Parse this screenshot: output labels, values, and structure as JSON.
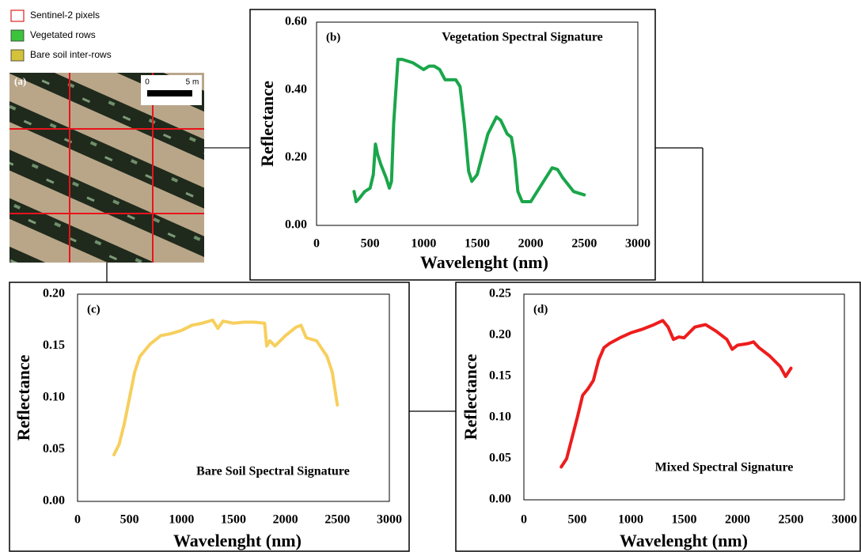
{
  "legend": {
    "items": [
      "Sentinel-2 pixels",
      "Vegetated rows",
      "Bare soil inter-rows"
    ]
  },
  "image_panel": {
    "label": "(a)",
    "scale_bar": {
      "start": "0",
      "end": "5 m"
    }
  },
  "chart_data": [
    {
      "type": "line",
      "panel": "(b)",
      "title": "Vegetation Spectral Signature",
      "x_label": "Wavelenght (nm)",
      "y_label": "Reflectance",
      "color": "#1aa64a",
      "x": [
        350,
        370,
        400,
        450,
        500,
        530,
        550,
        570,
        600,
        650,
        680,
        700,
        720,
        760,
        800,
        900,
        950,
        1000,
        1050,
        1100,
        1150,
        1200,
        1300,
        1340,
        1380,
        1420,
        1450,
        1500,
        1600,
        1680,
        1720,
        1780,
        1820,
        1850,
        1880,
        1920,
        2000,
        2100,
        2200,
        2250,
        2300,
        2400,
        2500
      ],
      "values": [
        0.1,
        0.07,
        0.08,
        0.1,
        0.11,
        0.15,
        0.24,
        0.21,
        0.18,
        0.14,
        0.11,
        0.13,
        0.3,
        0.49,
        0.49,
        0.48,
        0.47,
        0.46,
        0.47,
        0.47,
        0.46,
        0.43,
        0.43,
        0.41,
        0.3,
        0.16,
        0.13,
        0.15,
        0.27,
        0.32,
        0.31,
        0.27,
        0.26,
        0.2,
        0.1,
        0.07,
        0.07,
        0.12,
        0.17,
        0.165,
        0.14,
        0.1,
        0.09
      ],
      "xlim": [
        0,
        3000
      ],
      "xticks": [
        0,
        500,
        1000,
        1500,
        2000,
        2500,
        3000
      ],
      "ylim": [
        0,
        0.6
      ],
      "yticks": [
        {
          "value": 0,
          "label": "0.00"
        },
        {
          "value": 0.2,
          "label": "0.20"
        },
        {
          "value": 0.4,
          "label": "0.40"
        },
        {
          "value": 0.6,
          "label": "0.60"
        }
      ]
    },
    {
      "type": "line",
      "panel": "(c)",
      "title": "Bare Soil Spectral Signature",
      "x_label": "Wavelenght (nm)",
      "y_label": "Reflectance",
      "color": "#f7cf5e",
      "x": [
        350,
        400,
        450,
        500,
        550,
        600,
        700,
        800,
        900,
        1000,
        1100,
        1200,
        1300,
        1350,
        1400,
        1500,
        1600,
        1700,
        1800,
        1820,
        1850,
        1900,
        2000,
        2100,
        2150,
        2200,
        2300,
        2400,
        2450,
        2500
      ],
      "values": [
        0.045,
        0.055,
        0.075,
        0.1,
        0.125,
        0.14,
        0.152,
        0.16,
        0.162,
        0.165,
        0.17,
        0.172,
        0.175,
        0.167,
        0.174,
        0.172,
        0.173,
        0.173,
        0.172,
        0.15,
        0.155,
        0.15,
        0.16,
        0.168,
        0.17,
        0.158,
        0.155,
        0.14,
        0.125,
        0.093
      ],
      "xlim": [
        0,
        3000
      ],
      "xticks": [
        0,
        500,
        1000,
        1500,
        2000,
        2500,
        3000
      ],
      "ylim": [
        0,
        0.2
      ],
      "yticks": [
        {
          "value": 0,
          "label": "0.00"
        },
        {
          "value": 0.05,
          "label": "0.05"
        },
        {
          "value": 0.1,
          "label": "0.10"
        },
        {
          "value": 0.15,
          "label": "0.15"
        },
        {
          "value": 0.2,
          "label": "0.20"
        }
      ]
    },
    {
      "type": "line",
      "panel": "(d)",
      "title": "Mixed Spectral Signature",
      "x_label": "Wavelenght (nm)",
      "y_label": "Reflectance",
      "color": "#ee1c1c",
      "x": [
        350,
        400,
        450,
        500,
        550,
        600,
        650,
        700,
        750,
        800,
        900,
        1000,
        1100,
        1200,
        1300,
        1350,
        1400,
        1450,
        1500,
        1600,
        1700,
        1800,
        1900,
        1950,
        2000,
        2100,
        2150,
        2200,
        2300,
        2400,
        2450,
        2500
      ],
      "values": [
        0.04,
        0.05,
        0.075,
        0.1,
        0.127,
        0.135,
        0.145,
        0.17,
        0.185,
        0.19,
        0.197,
        0.203,
        0.207,
        0.212,
        0.218,
        0.21,
        0.195,
        0.198,
        0.197,
        0.21,
        0.213,
        0.205,
        0.195,
        0.183,
        0.188,
        0.19,
        0.192,
        0.185,
        0.175,
        0.162,
        0.15,
        0.16
      ],
      "xlim": [
        0,
        3000
      ],
      "xticks": [
        0,
        500,
        1000,
        1500,
        2000,
        2500,
        3000
      ],
      "ylim": [
        0,
        0.25
      ],
      "yticks": [
        {
          "value": 0,
          "label": "0.00"
        },
        {
          "value": 0.05,
          "label": "0.05"
        },
        {
          "value": 0.1,
          "label": "0.10"
        },
        {
          "value": 0.15,
          "label": "0.15"
        },
        {
          "value": 0.2,
          "label": "0.20"
        },
        {
          "value": 0.25,
          "label": "0.25"
        }
      ]
    }
  ]
}
